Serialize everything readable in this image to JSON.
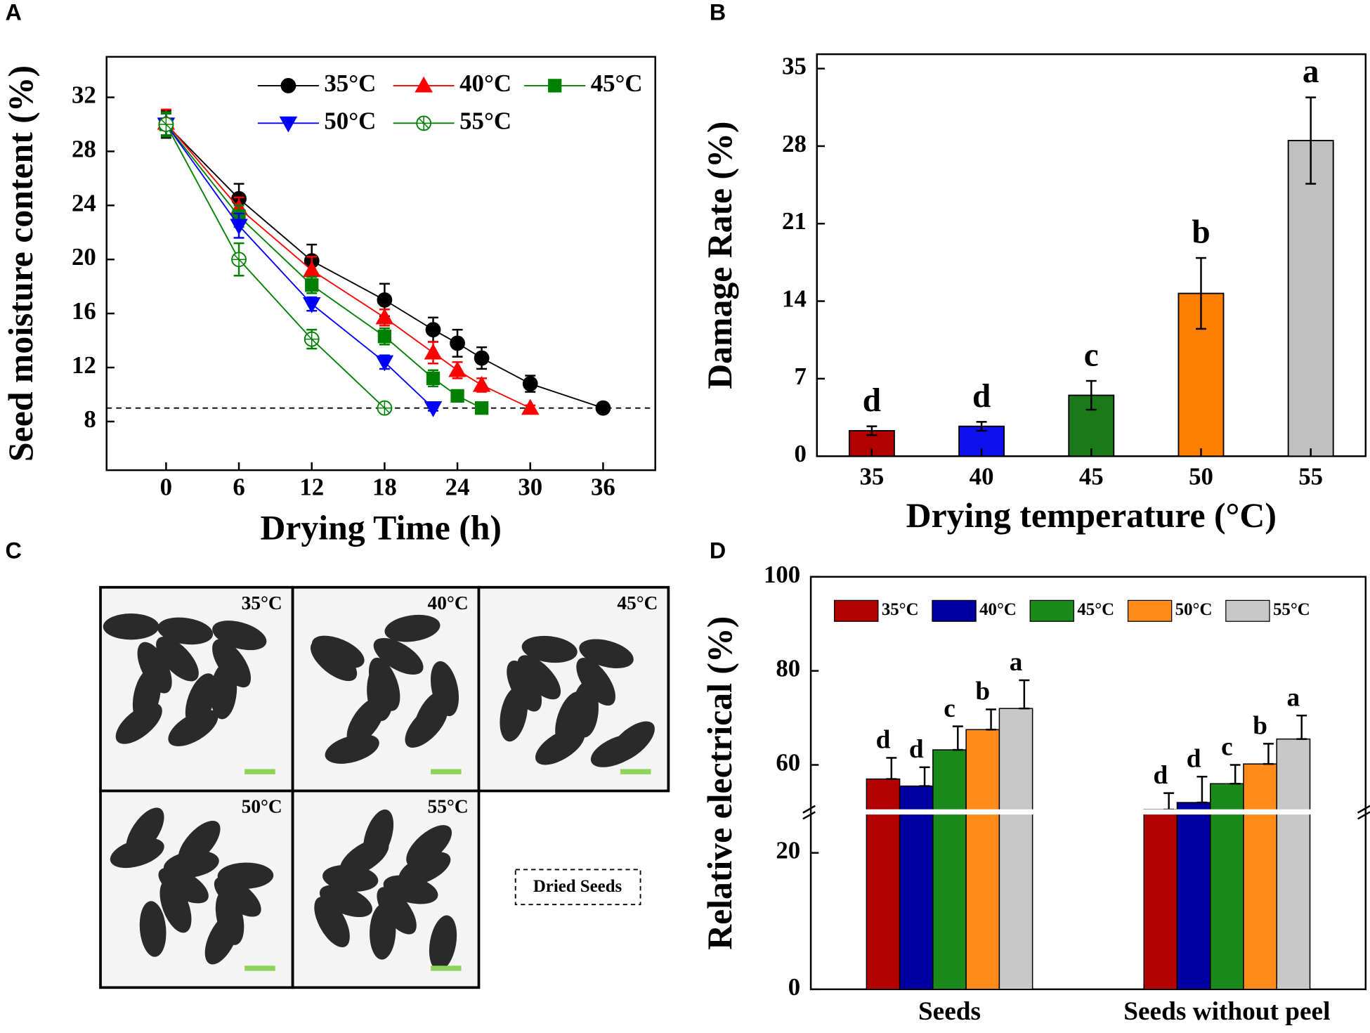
{
  "chart_data": [
    {
      "type": "line",
      "label": "A",
      "x_label": "Drying Time (h)",
      "y_label": "Seed moisture content (%)",
      "x": [
        0,
        6,
        12,
        18,
        22,
        24,
        26,
        30,
        36
      ],
      "xlim": [
        -4.9,
        40.3
      ],
      "ylim": [
        4.4,
        35
      ],
      "xticks": [
        0,
        6,
        12,
        18,
        24,
        30,
        36
      ],
      "yticks": [
        8,
        12,
        16,
        20,
        24,
        28,
        32
      ],
      "hline": 9,
      "series": [
        {
          "name": "35°C",
          "color": "#000000",
          "marker": "circle",
          "values": [
            30,
            24.5,
            19.9,
            17.0,
            14.8,
            13.8,
            12.7,
            10.8,
            9.0
          ],
          "errors": [
            1.0,
            1.1,
            1.2,
            1.2,
            0.9,
            1.0,
            0.8,
            0.6,
            0.2
          ]
        },
        {
          "name": "40°C",
          "color": "#ff0000",
          "marker": "triangle-up",
          "values": [
            30.1,
            23.8,
            19.2,
            15.7,
            13.1,
            11.8,
            10.7,
            9.0,
            null
          ],
          "errors": [
            1.0,
            0.8,
            1.0,
            0.6,
            0.8,
            0.6,
            0.5,
            0.2,
            null
          ]
        },
        {
          "name": "45°C",
          "color": "#008000",
          "marker": "square",
          "values": [
            30,
            23.2,
            18.1,
            14.3,
            11.2,
            9.9,
            9.0,
            null,
            null
          ],
          "errors": [
            0.9,
            0.8,
            0.6,
            0.6,
            0.6,
            0.3,
            0.2,
            null,
            null
          ]
        },
        {
          "name": "50°C",
          "color": "#0000ff",
          "marker": "triangle-down",
          "values": [
            30,
            22.5,
            16.7,
            12.4,
            9.0,
            null,
            null,
            null,
            null
          ],
          "errors": [
            0.8,
            0.9,
            0.5,
            0.5,
            0.2,
            null,
            null,
            null,
            null
          ]
        },
        {
          "name": "55°C",
          "color": "#008000",
          "marker": "open-diamond",
          "values": [
            30,
            20.0,
            14.1,
            9.0,
            null,
            null,
            null,
            null,
            null
          ],
          "errors": [
            0.8,
            1.2,
            0.7,
            0.2,
            null,
            null,
            null,
            null,
            null
          ]
        }
      ]
    },
    {
      "type": "bar",
      "label": "B",
      "x_label": "Drying temperature (°C)",
      "y_label": "Damage Rate (%)",
      "categories": [
        "35",
        "40",
        "45",
        "50",
        "55"
      ],
      "values": [
        2.3,
        2.7,
        5.5,
        14.7,
        28.5
      ],
      "errors": [
        0.4,
        0.4,
        1.3,
        3.2,
        3.9
      ],
      "letters": [
        "d",
        "d",
        "c",
        "b",
        "a"
      ],
      "colors": [
        "#b30000",
        "#1010ee",
        "#1a7a1a",
        "#ff8000",
        "#c0c0c0"
      ],
      "ylim": [
        0,
        36.3
      ],
      "yticks": [
        0,
        7,
        14,
        21,
        28,
        35
      ]
    },
    {
      "type": "grouped-bar",
      "label": "D",
      "y_label": "Relative electrical (%)",
      "categories": [
        "Seeds",
        "Seeds without peel"
      ],
      "ylim": [
        0,
        100
      ],
      "axis_break": [
        26,
        50
      ],
      "yticks": [
        0,
        20,
        60,
        80,
        100
      ],
      "series": [
        {
          "name": "35°C",
          "color": "#b30000",
          "values": [
            57.0,
            50.5
          ],
          "errors": [
            4.5,
            3.5
          ],
          "letters": [
            "d",
            "d"
          ]
        },
        {
          "name": "40°C",
          "color": "#0000a0",
          "values": [
            55.5,
            52.0
          ],
          "errors": [
            4.0,
            5.5
          ],
          "letters": [
            "d",
            "d"
          ]
        },
        {
          "name": "45°C",
          "color": "#1a8a1a",
          "values": [
            63.2,
            56.0
          ],
          "errors": [
            5.0,
            4.0
          ],
          "letters": [
            "c",
            "c"
          ]
        },
        {
          "name": "50°C",
          "color": "#ff8c1a",
          "values": [
            67.5,
            60.2
          ],
          "errors": [
            4.3,
            4.3
          ],
          "letters": [
            "b",
            "b"
          ]
        },
        {
          "name": "55°C",
          "color": "#c8c8c8",
          "values": [
            72.0,
            65.5
          ],
          "errors": [
            6.0,
            5.0
          ],
          "letters": [
            "a",
            "a"
          ]
        }
      ]
    }
  ],
  "photo_panel": {
    "label": "C",
    "images": [
      "35°C",
      "40°C",
      "45°C",
      "50°C",
      "55°C"
    ],
    "note": "Dried Seeds"
  }
}
